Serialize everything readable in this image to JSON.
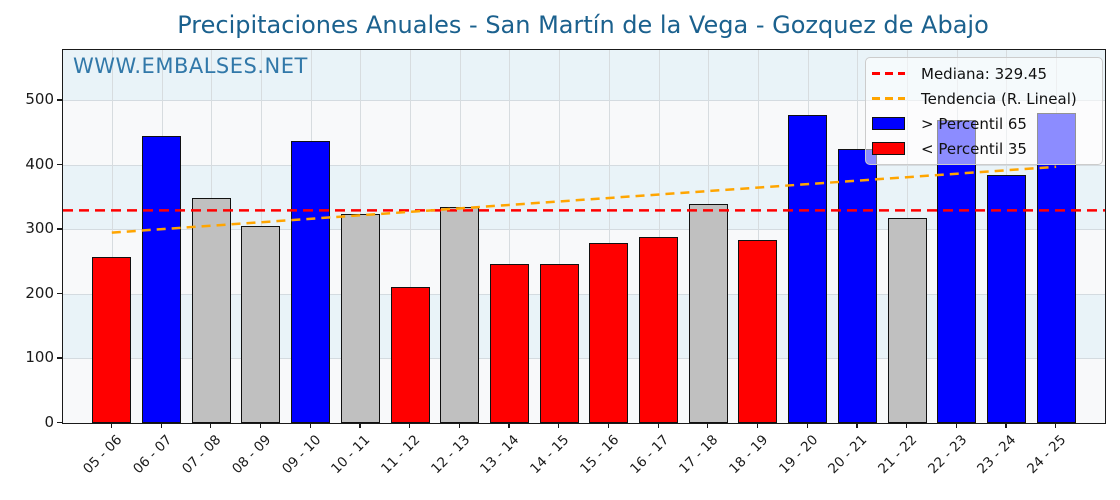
{
  "watermark": {
    "text": "WWW.EMBALSES.NET"
  },
  "colors": {
    "title": "#1b618e",
    "watermark": "#3178a9",
    "bar_above_p65": "#0000ff",
    "bar_below_p35": "#ff0000",
    "bar_mid": "#c0c0c0",
    "median_line": "#ff0000",
    "trend_line": "#ffa500",
    "band": "#e9f3f8",
    "plot_bg": "#f8f9fa"
  },
  "legend": {
    "items": [
      {
        "label": "Mediana: 329.45",
        "marker": "dashed-line",
        "color": "#ff0000"
      },
      {
        "label": "Tendencia (R. Lineal)",
        "marker": "dashed-line",
        "color": "#ffa500"
      },
      {
        "label": "> Percentil 65",
        "marker": "box",
        "color": "#0000ff"
      },
      {
        "label": "< Percentil 35",
        "marker": "box",
        "color": "#ff0000"
      }
    ]
  },
  "chart_data": {
    "type": "bar",
    "title": "Precipitaciones Anuales - San Martín de la Vega - Gozquez de Abajo",
    "categories": [
      "05 - 06",
      "06 - 07",
      "07 - 08",
      "08 - 09",
      "09 - 10",
      "10 - 11",
      "11 - 12",
      "12 - 13",
      "13 - 14",
      "14 - 15",
      "15 - 16",
      "16 - 17",
      "17 - 18",
      "18 - 19",
      "19 - 20",
      "20 - 21",
      "21 - 22",
      "22 - 23",
      "23 - 24",
      "24 - 25"
    ],
    "values": [
      257,
      445,
      348,
      306,
      437,
      324.4,
      210,
      334.5,
      246,
      246,
      279,
      289,
      339,
      284,
      477,
      425,
      317,
      470,
      385,
      480
    ],
    "bar_percentile_class": [
      "p35",
      "p65",
      "mid",
      "mid",
      "p65",
      "mid",
      "p35",
      "mid",
      "p35",
      "p35",
      "p35",
      "p35",
      "mid",
      "p35",
      "p65",
      "p65",
      "mid",
      "p65",
      "p65",
      "p65"
    ],
    "xlabel": "",
    "ylabel": "",
    "yticks": [
      0,
      100,
      200,
      300,
      400,
      500
    ],
    "ylim": [
      0,
      578
    ],
    "median": 329.45,
    "trend": {
      "value_at_first_bar": 295,
      "value_at_last_bar": 397
    },
    "background_bands": [
      [
        100,
        200
      ],
      [
        300,
        400
      ],
      [
        500,
        578
      ]
    ],
    "grid": true,
    "legend_position": "upper right"
  }
}
